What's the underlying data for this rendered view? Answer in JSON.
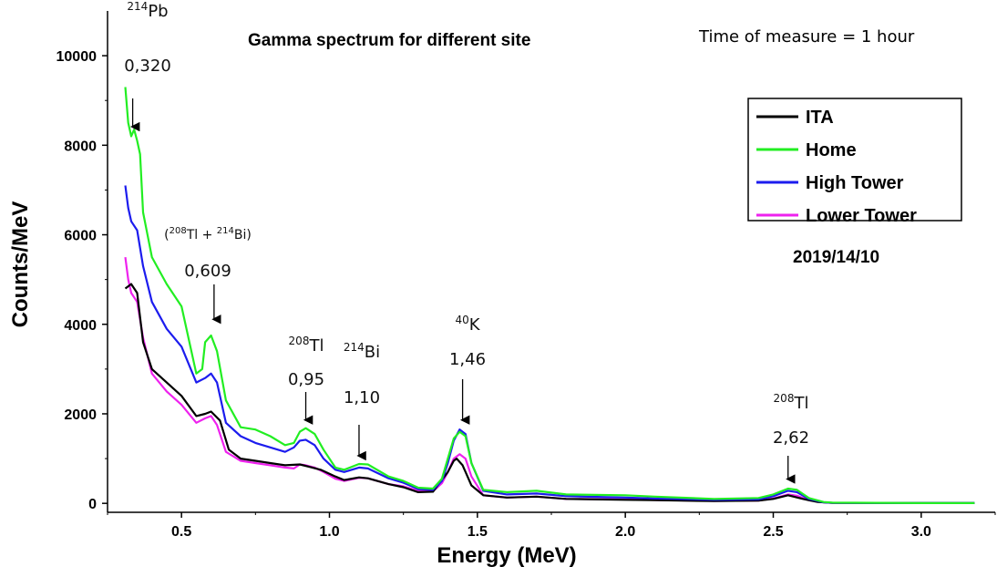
{
  "chart_data": {
    "type": "line",
    "title": "Gamma spectrum for different site",
    "subtitle": "Time of measure = 1 hour",
    "date_label": "2019/14/10",
    "xlabel": "Energy (MeV)",
    "ylabel": "Counts/MeV",
    "xlim": [
      0.25,
      3.25
    ],
    "ylim": [
      -200,
      11000
    ],
    "xticks": [
      "0.5",
      "1.0",
      "1.5",
      "2.0",
      "2.5",
      "3.0"
    ],
    "xtick_values": [
      0.5,
      1.0,
      1.5,
      2.0,
      2.5,
      3.0
    ],
    "yticks": [
      "0",
      "2000",
      "4000",
      "6000",
      "8000",
      "10000"
    ],
    "ytick_values": [
      0,
      2000,
      4000,
      6000,
      8000,
      10000
    ],
    "legend_position": "top-right",
    "grid": false,
    "series": [
      {
        "name": "ITA",
        "color": "#000000",
        "points": [
          [
            0.31,
            4800
          ],
          [
            0.33,
            4900
          ],
          [
            0.35,
            4700
          ],
          [
            0.37,
            3600
          ],
          [
            0.4,
            3000
          ],
          [
            0.45,
            2700
          ],
          [
            0.5,
            2400
          ],
          [
            0.55,
            1950
          ],
          [
            0.58,
            2000
          ],
          [
            0.6,
            2050
          ],
          [
            0.63,
            1850
          ],
          [
            0.66,
            1200
          ],
          [
            0.7,
            1000
          ],
          [
            0.75,
            950
          ],
          [
            0.8,
            900
          ],
          [
            0.85,
            850
          ],
          [
            0.9,
            870
          ],
          [
            0.93,
            820
          ],
          [
            0.97,
            750
          ],
          [
            1.02,
            600
          ],
          [
            1.05,
            520
          ],
          [
            1.1,
            580
          ],
          [
            1.13,
            560
          ],
          [
            1.2,
            430
          ],
          [
            1.25,
            360
          ],
          [
            1.3,
            250
          ],
          [
            1.35,
            260
          ],
          [
            1.4,
            700
          ],
          [
            1.42,
            950
          ],
          [
            1.43,
            1000
          ],
          [
            1.45,
            850
          ],
          [
            1.48,
            400
          ],
          [
            1.52,
            180
          ],
          [
            1.6,
            130
          ],
          [
            1.7,
            150
          ],
          [
            1.8,
            100
          ],
          [
            2.0,
            80
          ],
          [
            2.1,
            70
          ],
          [
            2.3,
            50
          ],
          [
            2.45,
            60
          ],
          [
            2.5,
            100
          ],
          [
            2.55,
            180
          ],
          [
            2.6,
            100
          ],
          [
            2.65,
            30
          ],
          [
            2.7,
            10
          ],
          [
            3.0,
            5
          ],
          [
            3.18,
            5
          ]
        ]
      },
      {
        "name": "Home",
        "color": "#22ee22",
        "points": [
          [
            0.31,
            9300
          ],
          [
            0.32,
            8500
          ],
          [
            0.33,
            8200
          ],
          [
            0.34,
            8350
          ],
          [
            0.35,
            8100
          ],
          [
            0.36,
            7800
          ],
          [
            0.37,
            6500
          ],
          [
            0.4,
            5500
          ],
          [
            0.45,
            4900
          ],
          [
            0.5,
            4400
          ],
          [
            0.55,
            2900
          ],
          [
            0.57,
            3000
          ],
          [
            0.58,
            3600
          ],
          [
            0.6,
            3750
          ],
          [
            0.62,
            3400
          ],
          [
            0.65,
            2300
          ],
          [
            0.7,
            1700
          ],
          [
            0.75,
            1650
          ],
          [
            0.8,
            1500
          ],
          [
            0.85,
            1300
          ],
          [
            0.88,
            1350
          ],
          [
            0.9,
            1600
          ],
          [
            0.92,
            1680
          ],
          [
            0.95,
            1550
          ],
          [
            0.98,
            1200
          ],
          [
            1.02,
            800
          ],
          [
            1.05,
            750
          ],
          [
            1.1,
            880
          ],
          [
            1.13,
            870
          ],
          [
            1.2,
            600
          ],
          [
            1.25,
            500
          ],
          [
            1.3,
            350
          ],
          [
            1.35,
            330
          ],
          [
            1.38,
            550
          ],
          [
            1.4,
            1000
          ],
          [
            1.42,
            1450
          ],
          [
            1.44,
            1600
          ],
          [
            1.46,
            1500
          ],
          [
            1.48,
            900
          ],
          [
            1.52,
            300
          ],
          [
            1.6,
            250
          ],
          [
            1.7,
            280
          ],
          [
            1.8,
            200
          ],
          [
            2.0,
            180
          ],
          [
            2.1,
            150
          ],
          [
            2.3,
            100
          ],
          [
            2.45,
            120
          ],
          [
            2.5,
            200
          ],
          [
            2.55,
            330
          ],
          [
            2.58,
            300
          ],
          [
            2.62,
            120
          ],
          [
            2.67,
            30
          ],
          [
            2.7,
            15
          ],
          [
            3.0,
            5
          ],
          [
            3.18,
            5
          ]
        ]
      },
      {
        "name": "High Tower",
        "color": "#1c1cee",
        "points": [
          [
            0.31,
            7100
          ],
          [
            0.32,
            6600
          ],
          [
            0.33,
            6300
          ],
          [
            0.35,
            6100
          ],
          [
            0.37,
            5300
          ],
          [
            0.4,
            4500
          ],
          [
            0.45,
            3900
          ],
          [
            0.5,
            3500
          ],
          [
            0.55,
            2700
          ],
          [
            0.58,
            2800
          ],
          [
            0.6,
            2900
          ],
          [
            0.62,
            2700
          ],
          [
            0.65,
            1800
          ],
          [
            0.7,
            1500
          ],
          [
            0.75,
            1350
          ],
          [
            0.8,
            1250
          ],
          [
            0.85,
            1150
          ],
          [
            0.88,
            1250
          ],
          [
            0.9,
            1400
          ],
          [
            0.92,
            1420
          ],
          [
            0.95,
            1300
          ],
          [
            0.98,
            1000
          ],
          [
            1.02,
            750
          ],
          [
            1.05,
            700
          ],
          [
            1.1,
            800
          ],
          [
            1.13,
            780
          ],
          [
            1.2,
            560
          ],
          [
            1.25,
            460
          ],
          [
            1.3,
            320
          ],
          [
            1.35,
            300
          ],
          [
            1.38,
            500
          ],
          [
            1.4,
            900
          ],
          [
            1.42,
            1400
          ],
          [
            1.44,
            1650
          ],
          [
            1.46,
            1550
          ],
          [
            1.48,
            900
          ],
          [
            1.52,
            280
          ],
          [
            1.6,
            200
          ],
          [
            1.7,
            220
          ],
          [
            1.8,
            160
          ],
          [
            2.0,
            130
          ],
          [
            2.1,
            110
          ],
          [
            2.3,
            80
          ],
          [
            2.45,
            90
          ],
          [
            2.5,
            160
          ],
          [
            2.55,
            280
          ],
          [
            2.58,
            250
          ],
          [
            2.62,
            100
          ],
          [
            2.67,
            25
          ],
          [
            2.7,
            10
          ],
          [
            3.0,
            5
          ],
          [
            3.18,
            5
          ]
        ]
      },
      {
        "name": "Lower Tower",
        "color": "#ee22ee",
        "points": [
          [
            0.31,
            5500
          ],
          [
            0.32,
            5000
          ],
          [
            0.33,
            4700
          ],
          [
            0.35,
            4500
          ],
          [
            0.37,
            3700
          ],
          [
            0.4,
            2900
          ],
          [
            0.45,
            2500
          ],
          [
            0.5,
            2200
          ],
          [
            0.55,
            1800
          ],
          [
            0.58,
            1900
          ],
          [
            0.6,
            1950
          ],
          [
            0.62,
            1750
          ],
          [
            0.65,
            1150
          ],
          [
            0.7,
            950
          ],
          [
            0.75,
            900
          ],
          [
            0.8,
            850
          ],
          [
            0.85,
            800
          ],
          [
            0.88,
            780
          ],
          [
            0.9,
            870
          ],
          [
            0.92,
            850
          ],
          [
            0.95,
            800
          ],
          [
            0.98,
            700
          ],
          [
            1.02,
            550
          ],
          [
            1.05,
            500
          ],
          [
            1.1,
            570
          ],
          [
            1.13,
            560
          ],
          [
            1.2,
            430
          ],
          [
            1.25,
            380
          ],
          [
            1.3,
            280
          ],
          [
            1.35,
            270
          ],
          [
            1.38,
            450
          ],
          [
            1.4,
            700
          ],
          [
            1.42,
            1000
          ],
          [
            1.44,
            1100
          ],
          [
            1.46,
            1000
          ],
          [
            1.48,
            600
          ],
          [
            1.52,
            180
          ],
          [
            1.6,
            130
          ],
          [
            1.7,
            150
          ],
          [
            1.8,
            100
          ],
          [
            2.0,
            90
          ],
          [
            2.1,
            75
          ],
          [
            2.3,
            55
          ],
          [
            2.45,
            60
          ],
          [
            2.5,
            110
          ],
          [
            2.55,
            200
          ],
          [
            2.58,
            170
          ],
          [
            2.62,
            70
          ],
          [
            2.67,
            20
          ],
          [
            2.7,
            8
          ],
          [
            3.0,
            5
          ],
          [
            3.18,
            5
          ]
        ]
      }
    ],
    "annotations": [
      {
        "isotope": "214",
        "element": "Pb",
        "energy_label": "0,320",
        "arrow_energy": 0.335,
        "arrow_tip_y": 8250
      },
      {
        "combo": [
          "(",
          "208",
          "Tl + ",
          "214",
          "Bi)"
        ],
        "energy_label": "0,609",
        "arrow_energy": 0.61,
        "arrow_tip_y": 3950
      },
      {
        "isotope": "208",
        "element": "Tl",
        "energy_label": "0,95",
        "arrow_energy": 0.92,
        "arrow_tip_y": 1700
      },
      {
        "isotope": "214",
        "element": "Bi",
        "energy_label": "1,10",
        "arrow_energy": 1.1,
        "arrow_tip_y": 900
      },
      {
        "isotope": "40",
        "element": "K",
        "energy_label": "1,46",
        "arrow_energy": 1.45,
        "arrow_tip_y": 1700
      },
      {
        "isotope": "208",
        "element": "Tl",
        "energy_label": "2,62",
        "arrow_energy": 2.55,
        "arrow_tip_y": 380
      }
    ]
  }
}
